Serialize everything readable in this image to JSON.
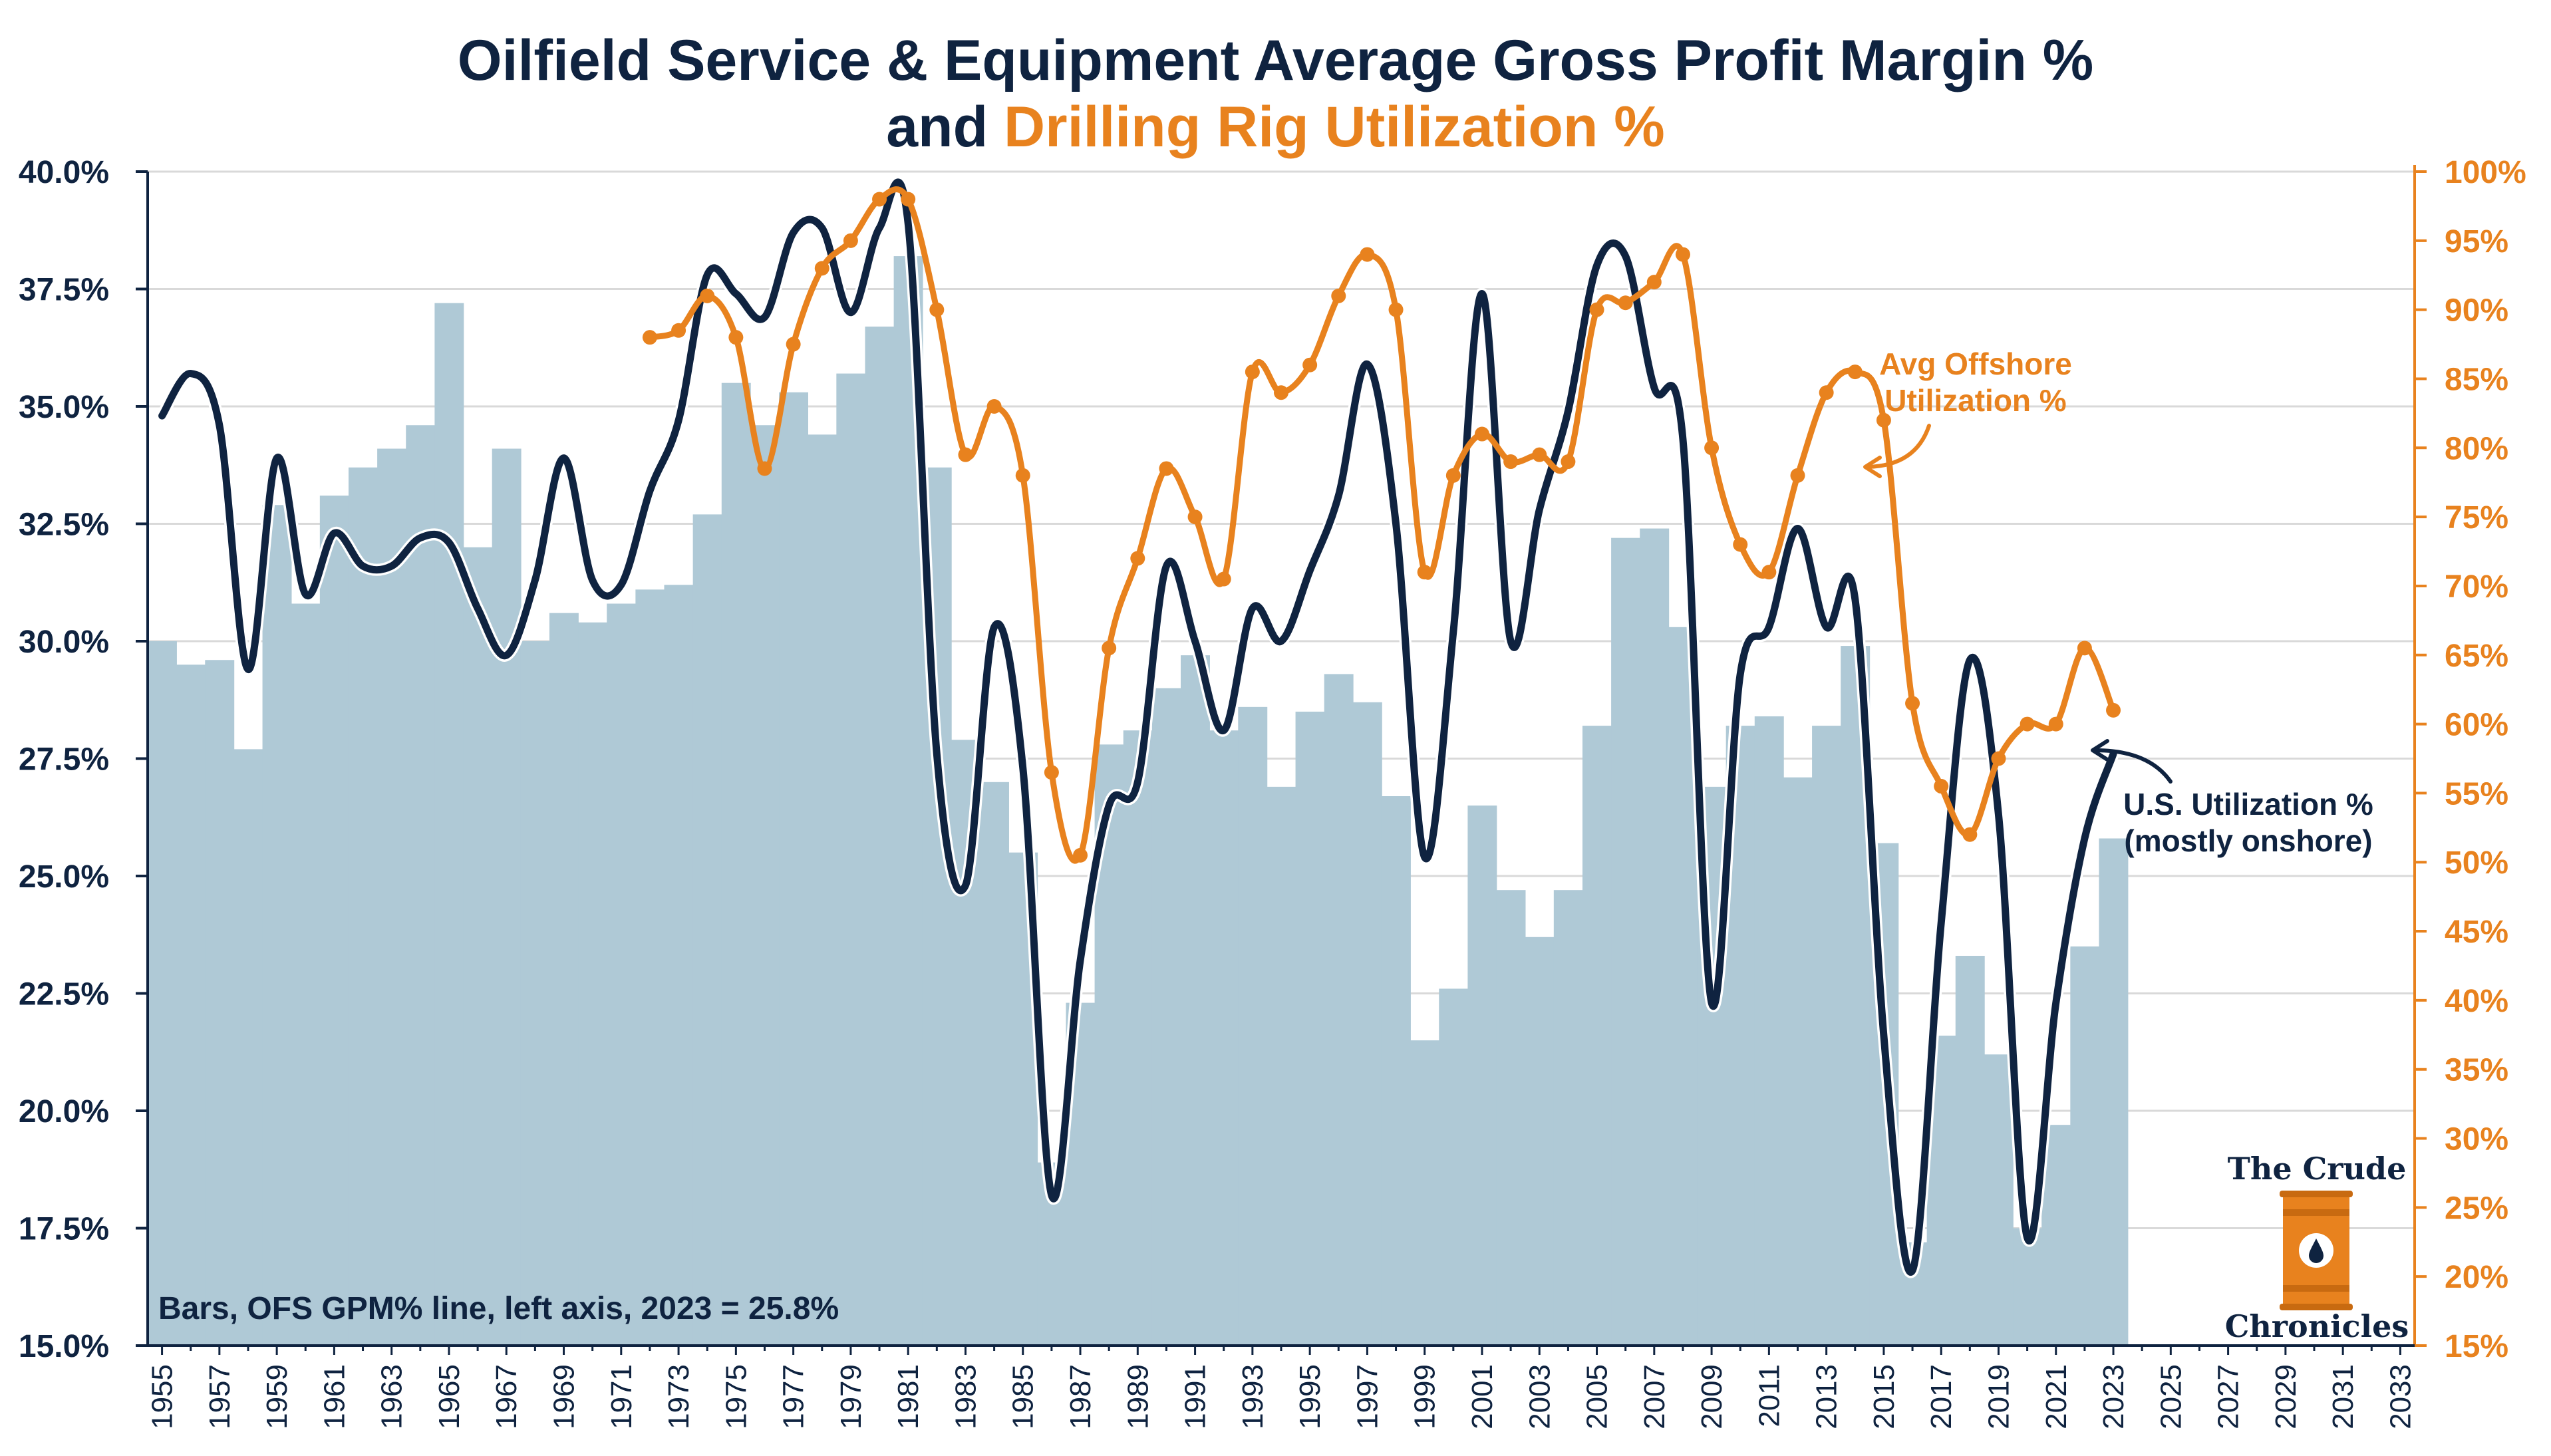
{
  "title": {
    "line1": "Oilfield Service & Equipment Average Gross Profit Margin %",
    "line2_prefix": "and ",
    "line2_accent": "Drilling Rig Utilization %"
  },
  "colors": {
    "bars": "#afc9d6",
    "navy": "#0f2340",
    "orange": "#e8821e",
    "grid": "#d9d9d9"
  },
  "annotations": {
    "bars_note": "Bars, OFS GPM% line, left axis, 2023 = 25.8%",
    "offshore_line1": "Avg Offshore",
    "offshore_line2": "Utilization %",
    "us_line1": "U.S. Utilization %",
    "us_line2": "(mostly onshore)"
  },
  "logo": {
    "top": "The Crude",
    "bottom": "Chronicles",
    "icon": "oil-barrel-icon"
  },
  "chart_data": {
    "type": "bar",
    "x_range": [
      1955,
      2033
    ],
    "x_tick_labels": [
      "1955",
      "1957",
      "1959",
      "1961",
      "1963",
      "1965",
      "1967",
      "1969",
      "1971",
      "1973",
      "1975",
      "1977",
      "1979",
      "1981",
      "1983",
      "1985",
      "1987",
      "1989",
      "1991",
      "1993",
      "1995",
      "1997",
      "1999",
      "2001",
      "2003",
      "2005",
      "2007",
      "2009",
      "2011",
      "2013",
      "2015",
      "2017",
      "2019",
      "2021",
      "2023",
      "2025",
      "2027",
      "2029",
      "2031",
      "2033"
    ],
    "left_axis": {
      "ylim": [
        15,
        40
      ],
      "tick_labels": [
        "15.0%",
        "17.5%",
        "20.0%",
        "22.5%",
        "25.0%",
        "27.5%",
        "30.0%",
        "32.5%",
        "35.0%",
        "37.5%",
        "40.0%"
      ]
    },
    "right_axis": {
      "ylim": [
        15,
        100
      ],
      "tick_labels": [
        "15%",
        "20%",
        "25%",
        "30%",
        "35%",
        "40%",
        "45%",
        "50%",
        "55%",
        "60%",
        "65%",
        "70%",
        "75%",
        "80%",
        "85%",
        "90%",
        "95%",
        "100%"
      ]
    },
    "grid": "horizontal",
    "series": [
      {
        "type": "bar",
        "axis": "left",
        "x": [
          1955,
          1956,
          1957,
          1958,
          1959,
          1960,
          1961,
          1962,
          1963,
          1964,
          1965,
          1966,
          1967,
          1968,
          1969,
          1970,
          1971,
          1972,
          1973,
          1974,
          1975,
          1976,
          1977,
          1978,
          1979,
          1980,
          1981,
          1982,
          1983,
          1984,
          1985,
          1986,
          1987,
          1988,
          1989,
          1990,
          1991,
          1992,
          1993,
          1994,
          1995,
          1996,
          1997,
          1998,
          1999,
          2000,
          2001,
          2002,
          2003,
          2004,
          2005,
          2006,
          2007,
          2008,
          2009,
          2010,
          2011,
          2012,
          2013,
          2014,
          2015,
          2016,
          2017,
          2018,
          2019,
          2020,
          2021,
          2022,
          2023
        ],
        "values": [
          30.0,
          29.5,
          29.6,
          27.7,
          32.9,
          30.8,
          33.1,
          33.7,
          34.1,
          34.6,
          37.2,
          32.0,
          34.1,
          30.0,
          30.6,
          30.4,
          30.8,
          31.1,
          31.2,
          32.7,
          35.5,
          34.6,
          35.3,
          34.4,
          35.7,
          36.7,
          38.2,
          33.7,
          27.9,
          27.0,
          25.5,
          18.9,
          22.3,
          27.8,
          28.1,
          29.0,
          29.7,
          28.1,
          28.6,
          26.9,
          28.5,
          29.3,
          28.7,
          26.7,
          21.5,
          22.6,
          26.5,
          24.7,
          23.7,
          24.7,
          28.2,
          32.2,
          32.4,
          30.3,
          26.9,
          28.2,
          28.4,
          27.1,
          28.2,
          29.9,
          25.7,
          17.2,
          21.6,
          23.3,
          21.2,
          17.5,
          19.7,
          23.5,
          25.8
        ]
      },
      {
        "type": "line",
        "axis": "left",
        "x": [
          1955,
          1956,
          1957,
          1958,
          1959,
          1960,
          1961,
          1962,
          1963,
          1964,
          1965,
          1966,
          1967,
          1968,
          1969,
          1970,
          1971,
          1972,
          1973,
          1974,
          1975,
          1976,
          1977,
          1978,
          1979,
          1980,
          1981,
          1982,
          1983,
          1984,
          1985,
          1986,
          1987,
          1988,
          1989,
          1990,
          1991,
          1992,
          1993,
          1994,
          1995,
          1996,
          1997,
          1998,
          1999,
          2000,
          2001,
          2002,
          2003,
          2004,
          2005,
          2006,
          2007,
          2008,
          2009,
          2010,
          2011,
          2012,
          2013,
          2014,
          2015,
          2016,
          2017,
          2018,
          2019,
          2020,
          2021,
          2022,
          2023
        ],
        "values": [
          34.8,
          35.7,
          34.6,
          29.4,
          33.9,
          31.0,
          32.3,
          31.6,
          31.6,
          32.2,
          32.1,
          30.7,
          29.7,
          31.3,
          33.9,
          31.3,
          31.2,
          33.2,
          34.7,
          37.8,
          37.4,
          36.9,
          38.7,
          38.8,
          37.0,
          38.8,
          38.9,
          27.6,
          24.8,
          30.3,
          27.3,
          18.2,
          23.2,
          26.5,
          27.0,
          31.6,
          30.0,
          28.1,
          30.7,
          30.0,
          31.5,
          33.1,
          35.9,
          32.5,
          25.4,
          30.2,
          37.4,
          30.0,
          32.8,
          34.9,
          38.0,
          38.2,
          35.4,
          34.3,
          22.3,
          29.3,
          30.3,
          32.4,
          30.3,
          30.9,
          21.6,
          16.6,
          24.0,
          29.6,
          26.3,
          17.3,
          22.3,
          25.8,
          27.6
        ]
      },
      {
        "type": "line",
        "axis": "right",
        "name": "Avg Offshore Utilization %",
        "x": [
          1972,
          1973,
          1974,
          1975,
          1976,
          1977,
          1978,
          1979,
          1980,
          1981,
          1982,
          1983,
          1984,
          1985,
          1986,
          1987,
          1988,
          1989,
          1990,
          1991,
          1992,
          1993,
          1994,
          1995,
          1996,
          1997,
          1998,
          1999,
          2000,
          2001,
          2002,
          2003,
          2004,
          2005,
          2006,
          2007,
          2008,
          2009,
          2010,
          2011,
          2012,
          2013,
          2014,
          2015,
          2016,
          2017,
          2018,
          2019,
          2020,
          2021,
          2022,
          2023
        ],
        "values": [
          88,
          88.5,
          91,
          88,
          78.5,
          87.5,
          93,
          95,
          98,
          98,
          90,
          79.5,
          83,
          78,
          56.5,
          50.5,
          65.5,
          72,
          78.5,
          75,
          70.5,
          85.5,
          84,
          86,
          91,
          94,
          90,
          71,
          78,
          81,
          79,
          79.5,
          79,
          90,
          90.5,
          92,
          94,
          80,
          73,
          71,
          78,
          84,
          85.5,
          82,
          61.5,
          55.5,
          52,
          57.5,
          60,
          60,
          65.5,
          61
        ]
      },
      {
        "type": "line",
        "axis": "left",
        "name": "U.S. Utilization %",
        "x": [
          1989,
          1990,
          1991,
          1992,
          1993,
          1994,
          1995,
          1996,
          1997,
          1998,
          1999,
          2000,
          2001,
          2002,
          2003,
          2004,
          2005,
          2006,
          2007,
          2008,
          2009,
          2010,
          2011,
          2012,
          2013,
          2014,
          2015,
          2016,
          2017,
          2018,
          2019,
          2020,
          2021,
          2022,
          2023
        ],
        "values": [
          27.0,
          31.6,
          30.0,
          28.1,
          30.7,
          30.0,
          31.5,
          33.1,
          35.9,
          32.5,
          25.4,
          30.2,
          37.4,
          30.0,
          32.8,
          34.9,
          38.0,
          38.2,
          35.4,
          34.3,
          22.3,
          29.3,
          30.3,
          32.4,
          30.3,
          30.9,
          21.6,
          16.6,
          24.0,
          29.6,
          26.3,
          17.3,
          22.3,
          25.8,
          27.6
        ]
      }
    ]
  }
}
